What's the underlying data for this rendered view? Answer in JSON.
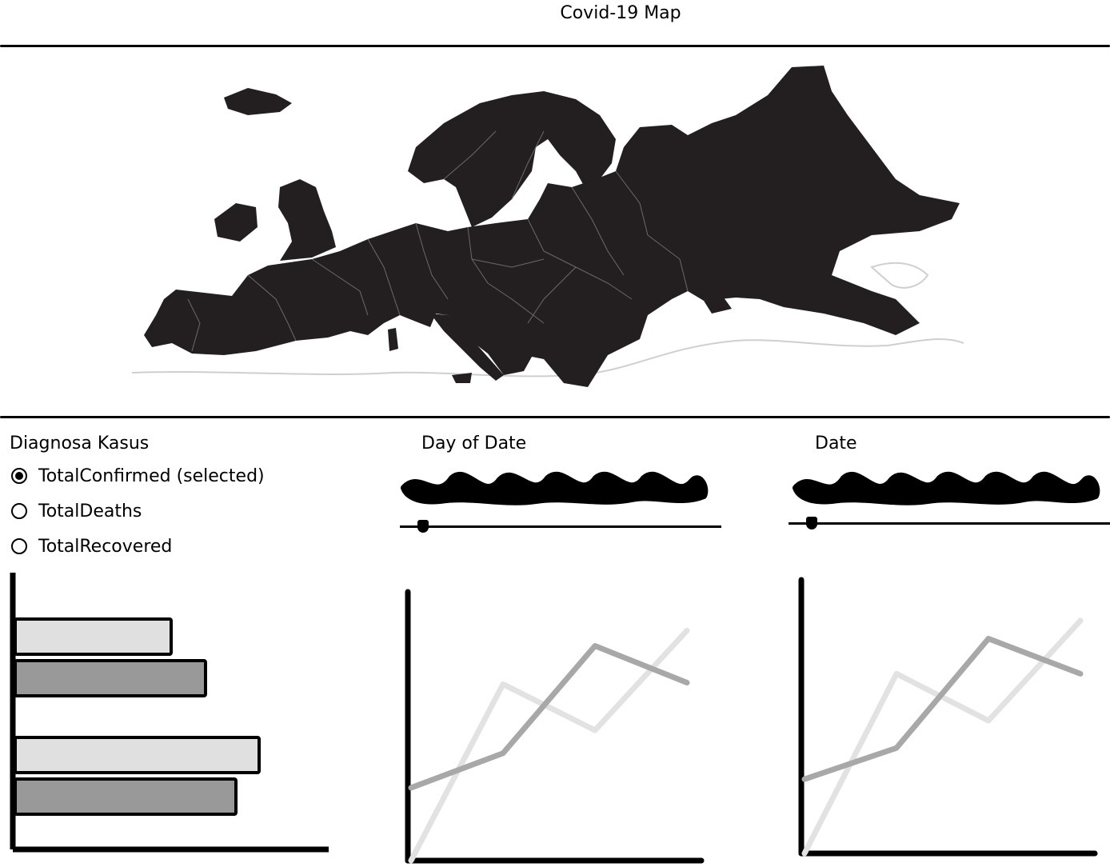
{
  "header": {
    "title": "Covid-19 Map"
  },
  "filters": {
    "heading": "Diagnosa Kasus",
    "options": [
      {
        "label": "TotalConfirmed (selected)",
        "selected": true
      },
      {
        "label": "TotalDeaths",
        "selected": false
      },
      {
        "label": "TotalRecovered",
        "selected": false
      }
    ]
  },
  "sliders": {
    "day_of_date": {
      "label": "Day of Date",
      "position": 0.07
    },
    "date": {
      "label": "Date",
      "position": 0.07
    }
  },
  "colors": {
    "ink": "#000000",
    "light_bar": "#e0e0e0",
    "dark_bar": "#999999",
    "line_light": "#e2e2e2",
    "line_dark": "#a8a8a8",
    "map_fill": "#231f20",
    "map_outline": "#cfcfcf"
  },
  "chart_data": [
    {
      "type": "bar",
      "orientation": "horizontal",
      "categories": [
        "",
        ""
      ],
      "series": [
        {
          "values": [
            195,
            305
          ],
          "color": "#e0e0e0"
        },
        {
          "values": [
            238,
            276
          ],
          "color": "#999999"
        }
      ],
      "xlim": [
        0,
        395
      ]
    },
    {
      "type": "line",
      "x": [
        0,
        1,
        2,
        3
      ],
      "series": [
        {
          "values": [
            0,
            230,
            170,
            300
          ],
          "color": "#e2e2e2"
        },
        {
          "values": [
            95,
            140,
            280,
            232
          ],
          "color": "#a8a8a8"
        }
      ],
      "ylim": [
        0,
        340
      ]
    },
    {
      "type": "line",
      "x": [
        0,
        1,
        2,
        3
      ],
      "series": [
        {
          "values": [
            0,
            230,
            170,
            298
          ],
          "color": "#e2e2e2"
        },
        {
          "values": [
            95,
            135,
            275,
            230
          ],
          "color": "#a8a8a8"
        }
      ],
      "ylim": [
        0,
        340
      ]
    }
  ]
}
